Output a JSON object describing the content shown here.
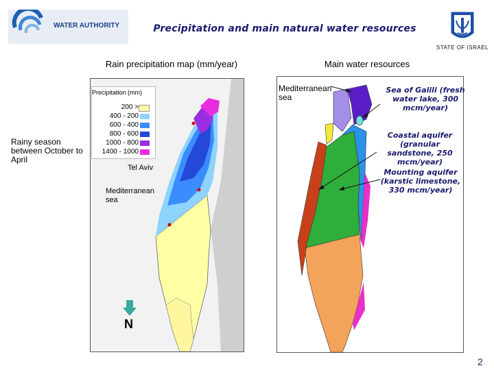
{
  "header": {
    "org_name": "WATER AUTHORITY",
    "title": "Precipitation and main natural water resources",
    "state": "STATE OF ISRAEL"
  },
  "rain_map": {
    "title": "Rain precipitation map (mm/year)",
    "legend_title": "Precipitation (mm)",
    "legend": [
      {
        "label": "200 >",
        "color": "#ffffa6"
      },
      {
        "label": "400 - 200",
        "color": "#8fd3ff"
      },
      {
        "label": "600 - 400",
        "color": "#3a8cff"
      },
      {
        "label": "800 - 600",
        "color": "#2448d8"
      },
      {
        "label": "1000 - 800",
        "color": "#9a2ee0"
      },
      {
        "label": "1400 - 1000",
        "color": "#e82de0"
      }
    ],
    "tel_aviv": "Tel Aviv",
    "sea_label": "Mediterranean sea",
    "north": "N"
  },
  "rainy_note": "Rainy season between October to April",
  "water_map": {
    "title": "Main water resources",
    "sea_label": "Mediterranean sea",
    "galili": "Sea of Galili (fresh water lake, 300 mcm/year)",
    "coastal": "Coastal aquifer (granular sandstone, 250 mcm/year)",
    "mounting": "Mounting aquifer (karstic limestone, 330 mcm/year)"
  },
  "page_number": "2"
}
